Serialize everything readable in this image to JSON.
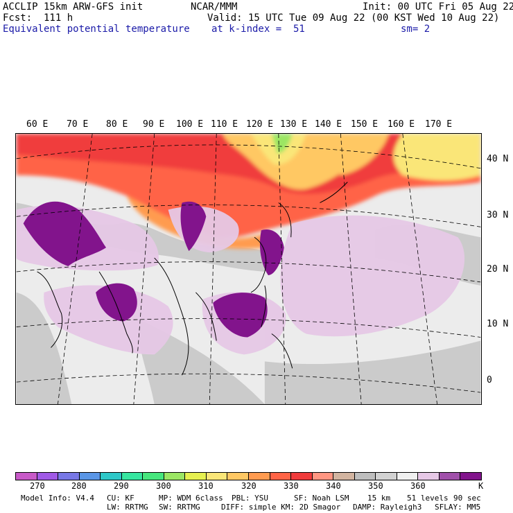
{
  "header": {
    "l1": "ACCLIP 15km ARW-GFS init",
    "l2": "Fcst:  111 h",
    "l3": "Equivalent potential temperature",
    "c1": "NCAR/MMM",
    "r1": "Init: 00 UTC Fri 05 Aug 22",
    "r2": "Valid: 15 UTC Tue 09 Aug 22 (00 KST Wed 10 Aug 22)",
    "k_text": "at k-index =  51",
    "sm_text": "sm= 2"
  },
  "lon_labels": [
    "60 E",
    "70 E",
    "80 E",
    "90 E",
    "100 E",
    "110 E",
    "120 E",
    "130 E",
    "140 E",
    "150 E",
    "160 E",
    "170 E"
  ],
  "lat_labels": [
    "40 N",
    "30 N",
    "20 N",
    "10 N",
    "0"
  ],
  "colorbar": {
    "colors": [
      "#c85ac8",
      "#a05ae6",
      "#7878e6",
      "#5a96e6",
      "#2ec8c8",
      "#37e6a0",
      "#46e67d",
      "#9be664",
      "#e6f050",
      "#fae678",
      "#ffc864",
      "#ff9b50",
      "#ff6446",
      "#f03c3c",
      "#ff9682",
      "#d2b4a0",
      "#bebebe",
      "#d2d2d2",
      "#f0f0f0",
      "#e6c8e6",
      "#a050aa",
      "#82148c"
    ],
    "ticks": [
      "270",
      "280",
      "290",
      "300",
      "310",
      "320",
      "330",
      "340",
      "350",
      "360"
    ],
    "unit": "K"
  },
  "footer": {
    "i1": "Model Info: V4.4",
    "i2": "CU: KF",
    "i3": "MP: WDM 6class",
    "i4": "PBL: YSU",
    "i5": "SF: Noah LSM",
    "i6": "15 km",
    "i7": "51 levels",
    "i8": "90 sec",
    "j1": "LW: RRTMG",
    "j2": "SW: RRTMG",
    "j3": "DIFF: simple KM: 2D Smagor",
    "j4": "DAMP: Rayleigh3",
    "j5": "SFLAY: MM5"
  }
}
